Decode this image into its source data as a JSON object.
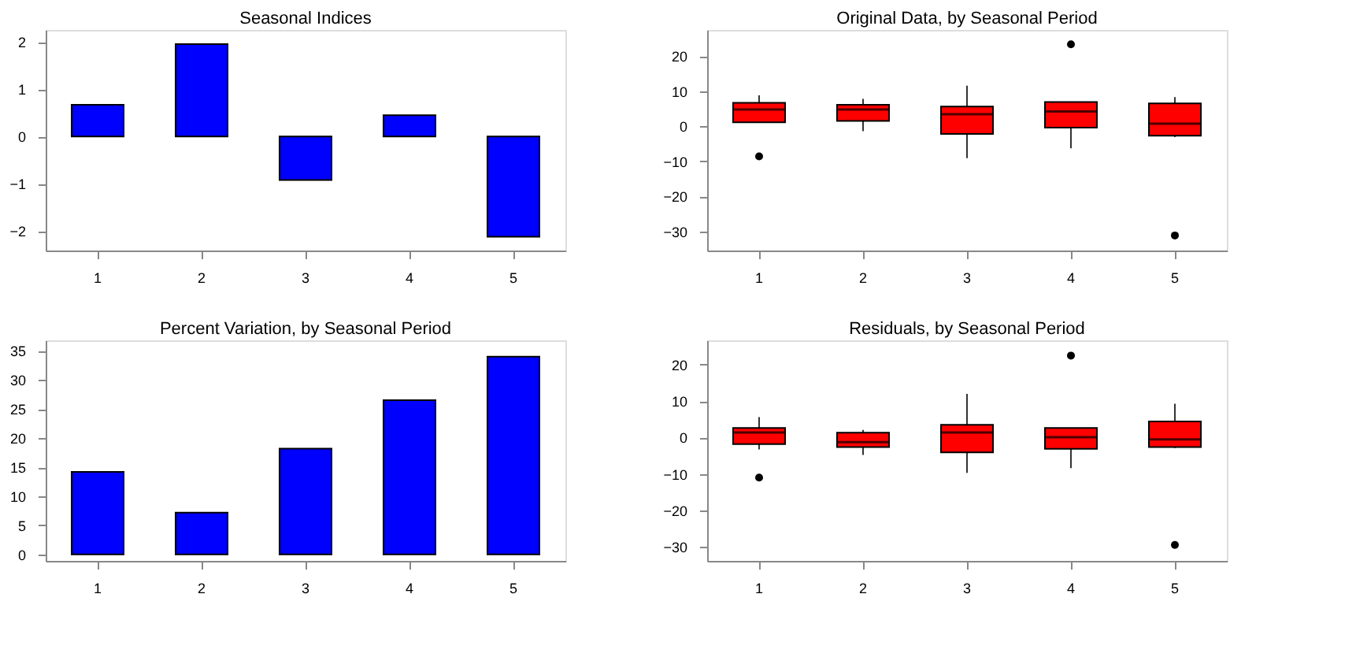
{
  "chart_data": [
    {
      "type": "bar",
      "title": "Seasonal Indices",
      "categories": [
        "1",
        "2",
        "3",
        "4",
        "5"
      ],
      "values": [
        0.67,
        1.95,
        -0.92,
        0.45,
        -2.12
      ],
      "color": "#0000ff",
      "ylim": [
        -2.41,
        2.25
      ],
      "yticks": [
        -2,
        -1,
        0,
        1,
        2
      ],
      "grid": false
    },
    {
      "type": "box",
      "title": "Original Data, by Seasonal Period",
      "categories": [
        "1",
        "2",
        "3",
        "4",
        "5"
      ],
      "color": "#ff0000",
      "ylim": [
        -35.5,
        27.5
      ],
      "yticks": [
        -30,
        -20,
        -10,
        0,
        10,
        20
      ],
      "grid": false,
      "boxes": [
        {
          "low": 1.1,
          "q1": 1.1,
          "median": 4.8,
          "q3": 6.7,
          "high": 8.8,
          "outliers": [
            -8.6
          ]
        },
        {
          "low": -1.4,
          "q1": 1.5,
          "median": 4.8,
          "q3": 6.1,
          "high": 7.8
        },
        {
          "low": -9.1,
          "q1": -2.2,
          "median": 3.4,
          "q3": 5.6,
          "high": 11.6
        },
        {
          "low": -6.3,
          "q1": -0.4,
          "median": 4.2,
          "q3": 6.9,
          "high": 6.9,
          "outliers": [
            23.4
          ]
        },
        {
          "low": -3.1,
          "q1": -2.7,
          "median": 0.7,
          "q3": 6.5,
          "high": 8.3,
          "outliers": [
            -31.2
          ]
        }
      ]
    },
    {
      "type": "bar",
      "title": "Percent Variation, by Seasonal Period",
      "categories": [
        "1",
        "2",
        "3",
        "4",
        "5"
      ],
      "values": [
        14.2,
        7.2,
        18.2,
        26.5,
        34.0
      ],
      "color": "#0000ff",
      "ylim": [
        -1.1,
        36.8
      ],
      "yticks": [
        0,
        5,
        10,
        15,
        20,
        25,
        30,
        35
      ],
      "grid": false
    },
    {
      "type": "box",
      "title": "Residuals, by Seasonal Period",
      "categories": [
        "1",
        "2",
        "3",
        "4",
        "5"
      ],
      "color": "#ff0000",
      "ylim": [
        -33.9,
        26.7
      ],
      "yticks": [
        -30,
        -20,
        -10,
        0,
        10,
        20
      ],
      "grid": false,
      "boxes": [
        {
          "low": -3.3,
          "q1": -1.8,
          "median": 1.4,
          "q3": 2.6,
          "high": 5.6,
          "outliers": [
            -11.0
          ]
        },
        {
          "low": -4.8,
          "q1": -2.6,
          "median": -1.3,
          "q3": 1.3,
          "high": 2.1
        },
        {
          "low": -9.7,
          "q1": -4.1,
          "median": 1.4,
          "q3": 3.5,
          "high": 12.0
        },
        {
          "low": -8.4,
          "q1": -3.1,
          "median": 0.1,
          "q3": 2.6,
          "high": 2.6,
          "outliers": [
            22.5
          ]
        },
        {
          "low": -2.9,
          "q1": -2.6,
          "median": -0.5,
          "q3": 4.4,
          "high": 9.3,
          "outliers": [
            -29.5
          ]
        }
      ]
    }
  ]
}
